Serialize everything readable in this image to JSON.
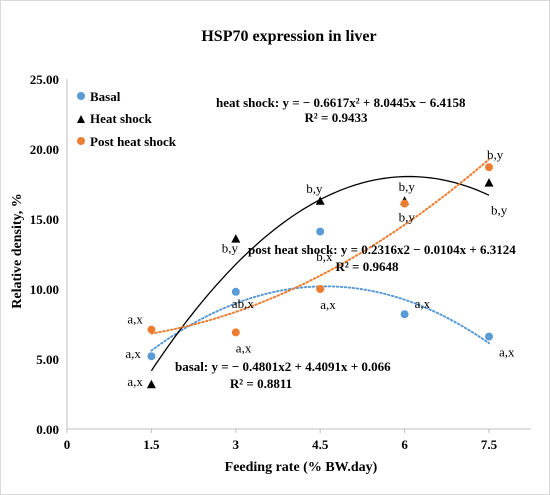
{
  "chart_data": {
    "type": "scatter",
    "title": "HSP70 expression in liver",
    "xlabel": "Feeding rate (% BW.day)",
    "ylabel": "Relative density, %",
    "xlim": [
      0,
      7.5
    ],
    "ylim": [
      0,
      25
    ],
    "x_ticks": [
      "0",
      "1.5",
      "3",
      "4.5",
      "6",
      "7.5"
    ],
    "y_ticks": [
      "0.00",
      "5.00",
      "10.00",
      "15.00",
      "20.00",
      "25.00"
    ],
    "legend_position": "top-left",
    "grid": false,
    "series": [
      {
        "name": "Basal",
        "marker": "circle",
        "color": "#5b9bd5",
        "trend_style": "dotted",
        "x": [
          1.5,
          3,
          4.5,
          6,
          7.5
        ],
        "values": [
          5.2,
          9.8,
          14.1,
          8.2,
          6.6
        ],
        "labels": [
          "a,x",
          "ab,x",
          "b,x",
          "a,x",
          "a,x"
        ],
        "equation": "basal: y = − 0.4801x2 + 4.4091x + 0.066",
        "r2": "R² = 0.8811",
        "trend_coeffs": [
          -0.4801,
          4.4091,
          0.066
        ],
        "trend_range": [
          1.5,
          7.5
        ]
      },
      {
        "name": "Heat shock",
        "marker": "triangle",
        "color": "#000000",
        "trend_style": "solid",
        "x": [
          1.5,
          3,
          4.5,
          6,
          7.5
        ],
        "values": [
          3.2,
          13.6,
          16.3,
          16.3,
          17.6
        ],
        "labels": [
          "a,x",
          "b,y",
          "b,y",
          "b,y",
          "b,y"
        ],
        "equation": "heat shock: y = − 0.6617x² + 8.0445x − 6.4158",
        "r2": "R² = 0.9433",
        "trend_coeffs": [
          -0.6617,
          8.0445,
          -6.4158
        ],
        "trend_range": [
          1.5,
          7.5
        ]
      },
      {
        "name": "Post heat shock",
        "marker": "circle",
        "color": "#ed7d31",
        "trend_style": "dotted",
        "x": [
          1.5,
          3,
          4.5,
          6,
          7.5
        ],
        "values": [
          7.1,
          6.9,
          10.0,
          16.1,
          18.7
        ],
        "labels": [
          "a,x",
          "a,x",
          "a,x",
          "b,y",
          "b,y"
        ],
        "equation": "post heat shock: y = 0.2316x2 − 0.0104x + 6.3124",
        "r2": "R² = 0.9648",
        "trend_coeffs": [
          0.2316,
          -0.0104,
          6.3124
        ],
        "trend_range": [
          1.5,
          7.5
        ]
      }
    ]
  }
}
